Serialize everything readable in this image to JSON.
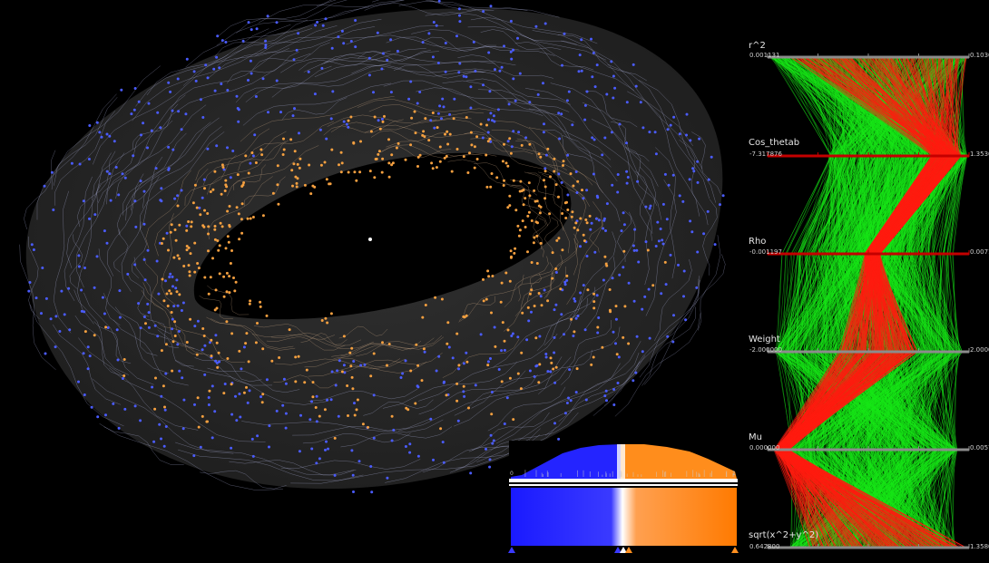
{
  "colors": {
    "background": "#000000",
    "torus": "#262626",
    "blue_particles": "#4b5cff",
    "orange_particles": "#f5a040",
    "pc_green": "#18e818",
    "pc_red": "#ff1c10",
    "axis_gray": "#8c8c8c",
    "axis_selected": "#c40000"
  },
  "parallel_coordinates": {
    "axes": [
      {
        "name": "r^2",
        "min": "0.001131",
        "max": "0.1036",
        "selected": false
      },
      {
        "name": "Cos_thetab",
        "min": "-7.317876",
        "max": "1.3536",
        "selected": true
      },
      {
        "name": "Rho",
        "min": "-0.001197",
        "max": "0.0071",
        "selected": true
      },
      {
        "name": "Weight",
        "min": "-2.000000",
        "max": "2.0000",
        "selected": false
      },
      {
        "name": "Mu",
        "min": "0.000000",
        "max": "0.0057",
        "selected": false
      },
      {
        "name": "sqrt(x^2+y^2)",
        "min": "0.642800",
        "max": "1.3580",
        "selected": false
      }
    ]
  },
  "transfer_function": {
    "left_value": "0",
    "right_value": "1",
    "split_fraction": 0.5,
    "colors": [
      "#2222ff",
      "#ff8a0a"
    ]
  }
}
